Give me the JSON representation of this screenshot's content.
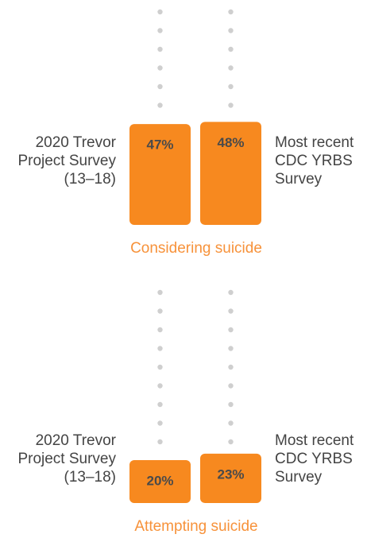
{
  "chart_data": [
    {
      "type": "bar",
      "title": "Considering suicide",
      "categories": [
        [
          "2020 Trevor",
          "Project Survey",
          "(13–18)"
        ],
        [
          "Most recent",
          "CDC YRBS",
          "Survey"
        ]
      ],
      "values": [
        47,
        48
      ],
      "value_labels": [
        "47%",
        "48%"
      ],
      "color": "#f7891f"
    },
    {
      "type": "bar",
      "title": "Attempting suicide",
      "categories": [
        [
          "2020 Trevor",
          "Project Survey",
          "(13–18)"
        ],
        [
          "Most recent",
          "CDC YRBS",
          "Survey"
        ]
      ],
      "values": [
        20,
        23
      ],
      "value_labels": [
        "20%",
        "23%"
      ],
      "color": "#f7891f"
    }
  ]
}
